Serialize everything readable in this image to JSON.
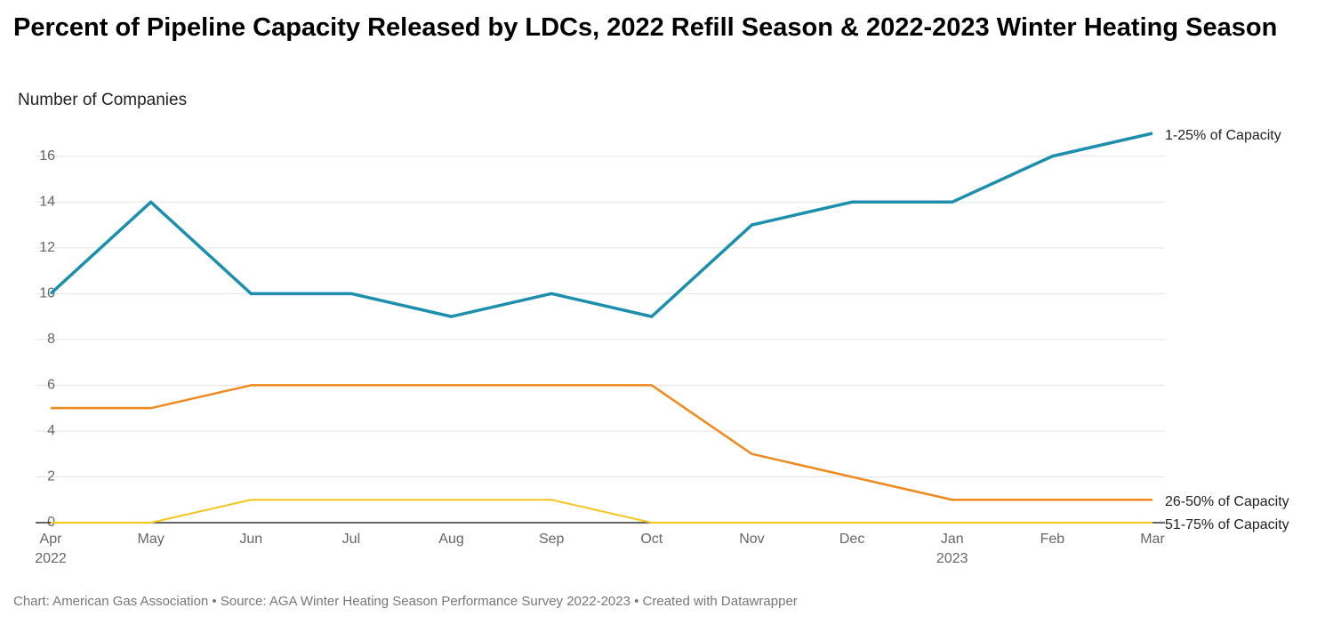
{
  "chart_data": {
    "type": "line",
    "title": "Percent of Pipeline Capacity Released by LDCs, 2022 Refill Season & 2022-2023 Winter Heating Season",
    "y_label": "Number of Companies",
    "footer": "Chart: American Gas Association • Source: AGA Winter Heating Season Performance Survey 2022-2023 • Created with Datawrapper",
    "categories": [
      "Apr",
      "May",
      "Jun",
      "Jul",
      "Aug",
      "Sep",
      "Oct",
      "Nov",
      "Dec",
      "Jan",
      "Feb",
      "Mar"
    ],
    "year_labels": [
      "2022",
      null,
      null,
      null,
      null,
      null,
      null,
      null,
      null,
      "2023",
      null,
      null
    ],
    "series": [
      {
        "name": "1-25% of Capacity",
        "color": "#1b8fad",
        "values": [
          10,
          14,
          10,
          10,
          9,
          10,
          9,
          13,
          14,
          14,
          16,
          17
        ]
      },
      {
        "name": "26-50% of Capacity",
        "color": "#f0891e",
        "values": [
          5,
          5,
          6,
          6,
          6,
          6,
          6,
          3,
          2,
          1,
          1,
          1
        ]
      },
      {
        "name": "51-75% of Capacity",
        "color": "#f5c51c",
        "values": [
          0,
          0,
          1,
          1,
          1,
          1,
          0,
          0,
          0,
          0,
          0,
          0
        ]
      }
    ],
    "ylim": [
      0,
      17
    ],
    "yticks": [
      0,
      2,
      4,
      6,
      8,
      10,
      12,
      14,
      16
    ],
    "grid": true
  }
}
